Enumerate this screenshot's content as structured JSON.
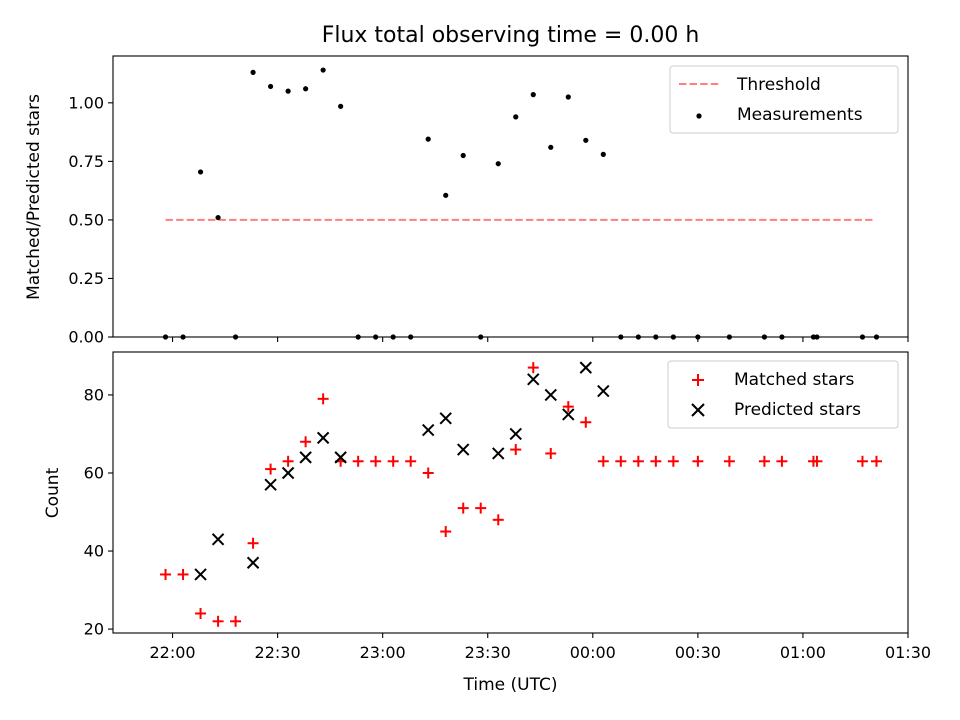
{
  "chart_data": [
    {
      "type": "scatter",
      "title": "Flux total observing time = 0.00 h",
      "xlabel": "",
      "ylabel": "Matched/Predicted stars",
      "xlim": [
        "21:43",
        "01:30"
      ],
      "ylim": [
        0,
        1.2
      ],
      "yticks": [
        "0.00",
        "0.25",
        "0.50",
        "0.75",
        "1.00"
      ],
      "legend_position": "upper right",
      "grid": false,
      "threshold": {
        "name": "Threshold",
        "color": "#ff7f7f",
        "style": "dashed",
        "value": 0.5,
        "x_start": "21:58",
        "x_end": "01:20"
      },
      "series": [
        {
          "name": "Measurements",
          "marker": "dot",
          "color": "#000000",
          "points": [
            [
              "21:58",
              0.0
            ],
            [
              "22:03",
              0.0
            ],
            [
              "22:08",
              0.705
            ],
            [
              "22:13",
              0.51
            ],
            [
              "22:18",
              0.0
            ],
            [
              "22:23",
              1.13
            ],
            [
              "22:28",
              1.07
            ],
            [
              "22:33",
              1.05
            ],
            [
              "22:38",
              1.06
            ],
            [
              "22:43",
              1.14
            ],
            [
              "22:48",
              0.985
            ],
            [
              "22:53",
              0.0
            ],
            [
              "22:58",
              0.0
            ],
            [
              "23:03",
              0.0
            ],
            [
              "23:08",
              0.0
            ],
            [
              "23:13",
              0.845
            ],
            [
              "23:18",
              0.605
            ],
            [
              "23:23",
              0.775
            ],
            [
              "23:28",
              0.0
            ],
            [
              "23:33",
              0.74
            ],
            [
              "23:38",
              0.94
            ],
            [
              "23:43",
              1.035
            ],
            [
              "23:48",
              0.81
            ],
            [
              "23:53",
              1.025
            ],
            [
              "23:58",
              0.84
            ],
            [
              "00:03",
              0.78
            ],
            [
              "00:08",
              0.0
            ],
            [
              "00:13",
              0.0
            ],
            [
              "00:18",
              0.0
            ],
            [
              "00:23",
              0.0
            ],
            [
              "00:30",
              0.0
            ],
            [
              "00:39",
              0.0
            ],
            [
              "00:49",
              0.0
            ],
            [
              "00:54",
              0.0
            ],
            [
              "01:03",
              0.0
            ],
            [
              "01:04",
              0.0
            ],
            [
              "01:17",
              0.0
            ],
            [
              "01:21",
              0.0
            ]
          ]
        }
      ]
    },
    {
      "type": "scatter",
      "title": "",
      "xlabel": "Time (UTC)",
      "ylabel": "Count",
      "xlim": [
        "21:43",
        "01:30"
      ],
      "ylim": [
        19,
        91
      ],
      "xticks": [
        "22:00",
        "22:30",
        "23:00",
        "23:30",
        "00:00",
        "00:30",
        "01:00",
        "01:30"
      ],
      "yticks": [
        "20",
        "40",
        "60",
        "80"
      ],
      "legend_position": "upper right",
      "grid": false,
      "series": [
        {
          "name": "Matched stars",
          "marker": "plus",
          "color": "#ff0000",
          "points": [
            [
              "21:58",
              34
            ],
            [
              "22:03",
              34
            ],
            [
              "22:08",
              24
            ],
            [
              "22:13",
              22
            ],
            [
              "22:18",
              22
            ],
            [
              "22:23",
              42
            ],
            [
              "22:28",
              61
            ],
            [
              "22:33",
              63
            ],
            [
              "22:38",
              68
            ],
            [
              "22:43",
              79
            ],
            [
              "22:48",
              63
            ],
            [
              "22:53",
              63
            ],
            [
              "22:58",
              63
            ],
            [
              "23:03",
              63
            ],
            [
              "23:08",
              63
            ],
            [
              "23:13",
              60
            ],
            [
              "23:18",
              45
            ],
            [
              "23:23",
              51
            ],
            [
              "23:28",
              51
            ],
            [
              "23:33",
              48
            ],
            [
              "23:38",
              66
            ],
            [
              "23:43",
              87
            ],
            [
              "23:48",
              65
            ],
            [
              "23:53",
              77
            ],
            [
              "23:58",
              73
            ],
            [
              "00:03",
              63
            ],
            [
              "00:08",
              63
            ],
            [
              "00:13",
              63
            ],
            [
              "00:18",
              63
            ],
            [
              "00:23",
              63
            ],
            [
              "00:30",
              63
            ],
            [
              "00:39",
              63
            ],
            [
              "00:49",
              63
            ],
            [
              "00:54",
              63
            ],
            [
              "01:03",
              63
            ],
            [
              "01:04",
              63
            ],
            [
              "01:17",
              63
            ],
            [
              "01:21",
              63
            ]
          ]
        },
        {
          "name": "Predicted stars",
          "marker": "x",
          "color": "#000000",
          "points": [
            [
              "22:08",
              34
            ],
            [
              "22:13",
              43
            ],
            [
              "22:23",
              37
            ],
            [
              "22:28",
              57
            ],
            [
              "22:33",
              60
            ],
            [
              "22:38",
              64
            ],
            [
              "22:43",
              69
            ],
            [
              "22:48",
              64
            ],
            [
              "23:13",
              71
            ],
            [
              "23:18",
              74
            ],
            [
              "23:23",
              66
            ],
            [
              "23:33",
              65
            ],
            [
              "23:38",
              70
            ],
            [
              "23:43",
              84
            ],
            [
              "23:48",
              80
            ],
            [
              "23:53",
              75
            ],
            [
              "23:58",
              87
            ],
            [
              "00:03",
              81
            ]
          ]
        }
      ]
    }
  ]
}
